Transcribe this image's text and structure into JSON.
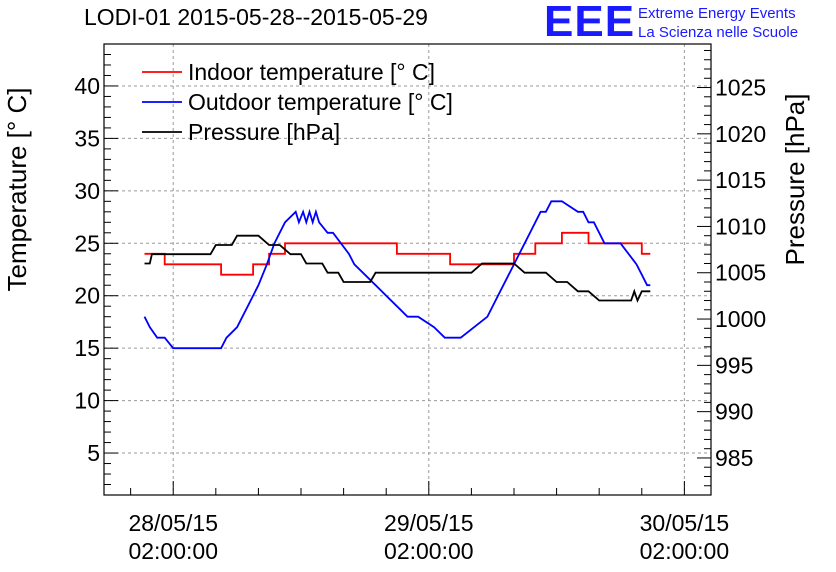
{
  "header": {
    "title": "LODI-01 2015-05-28--2015-05-29",
    "logo_letters": "EEE",
    "logo_line1": "Extreme Energy Events",
    "logo_line2": "La Scienza nelle Scuole"
  },
  "colors": {
    "indoor": "#ff0000",
    "outdoor": "#0000ff",
    "pressure": "#000000",
    "logo": "#1a1aff"
  },
  "chart_data": {
    "type": "line",
    "title": "LODI-01 2015-05-28--2015-05-29",
    "xlabel": "",
    "ylabel": "Temperature [° C]",
    "y2label": "Pressure [hPa]",
    "x_unit": "hours since 28/05/15 02:00:00",
    "xlim": [
      -6.5,
      50.5
    ],
    "ylim": [
      1,
      44
    ],
    "y2lim": [
      981,
      1029.7
    ],
    "grid": true,
    "legend_position": "top-left",
    "x_ticks": [
      {
        "value": 0,
        "line1": "28/05/15",
        "line2": "02:00:00"
      },
      {
        "value": 24,
        "line1": "29/05/15",
        "line2": "02:00:00"
      },
      {
        "value": 48,
        "line1": "30/05/15",
        "line2": "02:00:00"
      }
    ],
    "y_ticks": [
      5,
      10,
      15,
      20,
      25,
      30,
      35,
      40
    ],
    "y2_ticks": [
      985,
      990,
      995,
      1000,
      1005,
      1010,
      1015,
      1020,
      1025
    ],
    "series": [
      {
        "name": "Indoor temperature [° C]",
        "axis": "left",
        "color": "#ff0000",
        "x": [
          -2.7,
          -0.8,
          -0.8,
          4.5,
          4.5,
          7.5,
          7.5,
          9.0,
          9.0,
          10.5,
          10.5,
          21.0,
          21.0,
          26.0,
          26.0,
          32.0,
          32.0,
          34.0,
          34.0,
          36.5,
          36.5,
          39.0,
          39.0,
          44.0,
          44.0,
          44.8
        ],
        "values": [
          24,
          24,
          23,
          23,
          22,
          22,
          23,
          23,
          24,
          24,
          25,
          25,
          24,
          24,
          23,
          23,
          24,
          24,
          25,
          25,
          26,
          26,
          25,
          25,
          24,
          24
        ]
      },
      {
        "name": "Outdoor temperature [° C]",
        "axis": "left",
        "color": "#0000ff",
        "x": [
          -2.7,
          -2.2,
          -1.5,
          -0.8,
          0.0,
          4.5,
          5.0,
          6.0,
          6.5,
          7.0,
          8.0,
          8.8,
          9.5,
          10.0,
          10.5,
          11.5,
          11.8,
          12.2,
          12.5,
          12.8,
          13.1,
          13.4,
          13.7,
          14.5,
          15.0,
          16.5,
          17.0,
          18.0,
          19.0,
          20.0,
          21.0,
          22.0,
          23.0,
          24.5,
          25.5,
          27.0,
          29.5,
          30.5,
          31.5,
          32.5,
          33.5,
          34.0,
          34.5,
          35.0,
          35.5,
          36.5,
          38.0,
          38.5,
          39.0,
          39.5,
          40.0,
          40.5,
          41.0,
          42.0,
          43.5,
          44.0,
          44.5,
          44.8
        ],
        "values": [
          18,
          17,
          16,
          16,
          15,
          15,
          16,
          17,
          18,
          19,
          21,
          23,
          25,
          26,
          27,
          28,
          27,
          28,
          27,
          28,
          27,
          28,
          27,
          26,
          26,
          24,
          23,
          22,
          21,
          20,
          19,
          18,
          18,
          17,
          16,
          16,
          18,
          20,
          22,
          24,
          26,
          27,
          28,
          28,
          29,
          29,
          28,
          28,
          27,
          27,
          26,
          25,
          25,
          25,
          23,
          22,
          21,
          21
        ]
      },
      {
        "name": "Pressure [hPa]",
        "axis": "right",
        "color": "#000000",
        "x": [
          -2.7,
          -2.2,
          -2.0,
          -1.5,
          0.0,
          2.0,
          3.5,
          4.0,
          5.5,
          6.0,
          8.0,
          9.0,
          10.0,
          11.0,
          12.0,
          12.5,
          13.0,
          14.0,
          14.5,
          15.5,
          16.0,
          18.5,
          19.0,
          28.0,
          29.0,
          32.0,
          33.0,
          35.0,
          36.0,
          37.0,
          38.0,
          39.0,
          40.0,
          41.0,
          42.0,
          43.0,
          43.3,
          43.6,
          44.0,
          44.8
        ],
        "values": [
          1006,
          1006,
          1007,
          1007,
          1007,
          1007,
          1007,
          1008,
          1008,
          1009,
          1009,
          1008,
          1008,
          1007,
          1007,
          1006,
          1006,
          1006,
          1005,
          1005,
          1004,
          1004,
          1005,
          1005,
          1006,
          1006,
          1005,
          1005,
          1004,
          1004,
          1003,
          1003,
          1002,
          1002,
          1002,
          1002,
          1003,
          1002,
          1003,
          1003
        ]
      }
    ]
  }
}
